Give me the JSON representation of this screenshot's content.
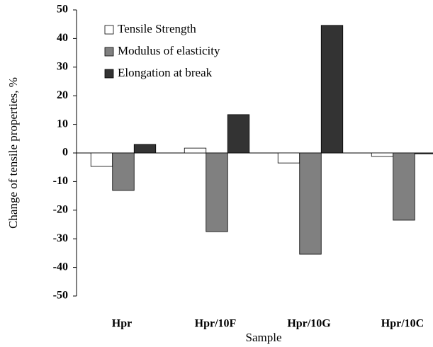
{
  "chart_data": {
    "type": "bar",
    "x_label": "Sample",
    "y_label": "Change of tensile properties, %",
    "categories": [
      "Hpr",
      "Hpr/10F",
      "Hpr/10G",
      "Hpr/10C"
    ],
    "series": [
      {
        "name": "Tensile Strength",
        "color": "#ffffff",
        "values": [
          -4.7,
          1.7,
          -3.5,
          -1.2
        ]
      },
      {
        "name": "Modulus of elasticity",
        "color": "#808080",
        "values": [
          -13.1,
          -27.5,
          -35.4,
          -23.5
        ]
      },
      {
        "name": "Elongation at break",
        "color": "#333333",
        "values": [
          3.0,
          13.4,
          44.6,
          -0.3
        ]
      }
    ],
    "ylim": [
      -50,
      50
    ],
    "yticks": [
      -50,
      -40,
      -30,
      -20,
      -10,
      0,
      10,
      20,
      30,
      40,
      50
    ],
    "grid": false,
    "legend": "upper-left"
  }
}
